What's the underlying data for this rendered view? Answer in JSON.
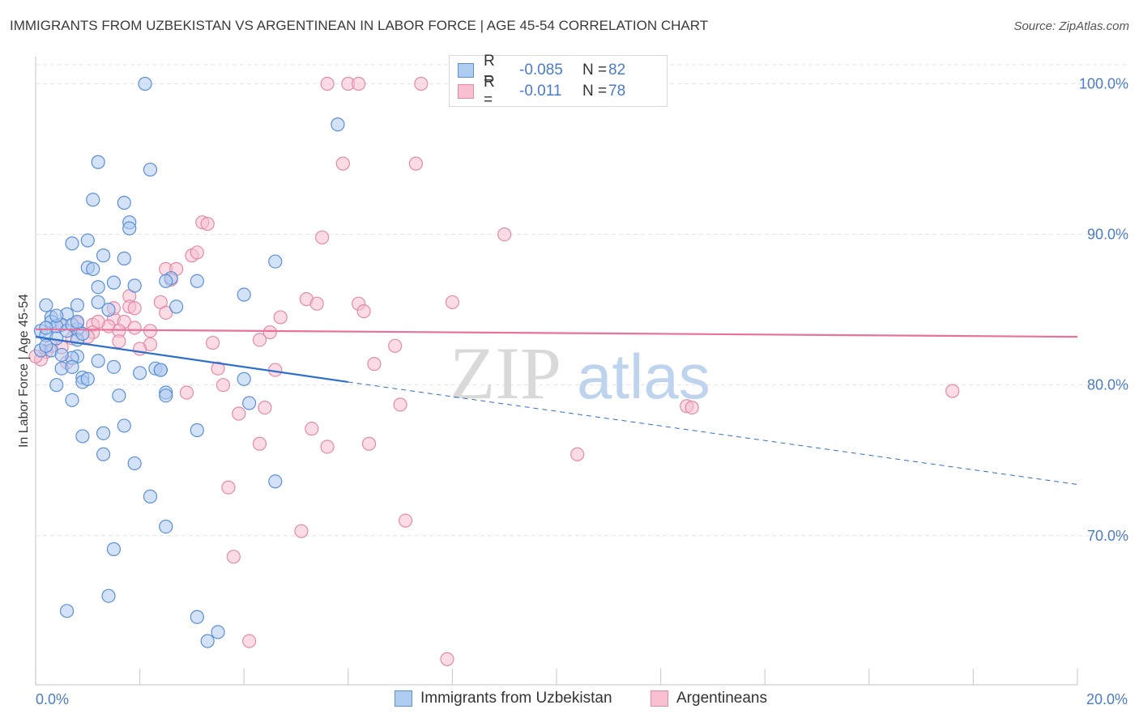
{
  "title": "IMMIGRANTS FROM UZBEKISTAN VS ARGENTINEAN IN LABOR FORCE | AGE 45-54 CORRELATION CHART",
  "source": "Source: ZipAtlas.com",
  "watermark": {
    "zip": "ZIP",
    "atlas": "atlas"
  },
  "colors": {
    "blue_fill": "#aecbf0",
    "blue_stroke": "#5b8fd6",
    "blue_line": "#2f6fcc",
    "pink_fill": "#f7bfd0",
    "pink_stroke": "#e28aa8",
    "pink_line": "#e8729a",
    "tick": "#4a7cc7"
  },
  "legend": {
    "rows": [
      {
        "r_label": "R =",
        "r_value": "-0.085",
        "n_label": "N =",
        "n_value": "82"
      },
      {
        "r_label": "R =",
        "r_value": "-0.011",
        "n_label": "N =",
        "n_value": "78"
      }
    ]
  },
  "bottom_legend": [
    "Immigrants from Uzbekistan",
    "Argentineans"
  ],
  "chart_data": {
    "type": "scatter",
    "title": "IMMIGRANTS FROM UZBEKISTAN VS ARGENTINEAN IN LABOR FORCE | AGE 45-54 CORRELATION CHART",
    "xlabel": "",
    "ylabel": "In Labor Force | Age 45-54",
    "xlim": [
      0,
      20
    ],
    "ylim": [
      60.1,
      101.8
    ],
    "x_tick_labels": [
      "0.0%",
      "20.0%"
    ],
    "y_ticks": [
      70,
      80,
      90,
      100
    ],
    "y_tick_labels": [
      "70.0%",
      "80.0%",
      "90.0%",
      "100.0%"
    ],
    "grid": true,
    "series": [
      {
        "name": "Immigrants from Uzbekistan",
        "color": "#5b8fd6",
        "trend": {
          "x": [
            0,
            6
          ],
          "y": [
            83.2,
            80.2
          ],
          "dashed_to_x": 20,
          "dashed_end_y": 73.4
        },
        "points": [
          [
            2.1,
            100.0
          ],
          [
            5.8,
            97.3
          ],
          [
            1.2,
            94.8
          ],
          [
            2.2,
            94.3
          ],
          [
            1.1,
            92.3
          ],
          [
            1.7,
            92.1
          ],
          [
            1.8,
            90.8
          ],
          [
            1.8,
            90.4
          ],
          [
            0.7,
            89.4
          ],
          [
            1.0,
            89.6
          ],
          [
            1.3,
            88.6
          ],
          [
            1.7,
            88.4
          ],
          [
            4.6,
            88.2
          ],
          [
            1.0,
            87.8
          ],
          [
            1.1,
            87.7
          ],
          [
            2.6,
            87.1
          ],
          [
            2.5,
            86.9
          ],
          [
            1.5,
            86.8
          ],
          [
            1.9,
            86.6
          ],
          [
            1.2,
            86.5
          ],
          [
            3.1,
            86.9
          ],
          [
            4.0,
            86.0
          ],
          [
            1.2,
            85.5
          ],
          [
            0.8,
            85.3
          ],
          [
            2.7,
            85.2
          ],
          [
            1.4,
            85.0
          ],
          [
            0.2,
            85.3
          ],
          [
            0.3,
            84.5
          ],
          [
            0.6,
            84.7
          ],
          [
            0.3,
            84.2
          ],
          [
            0.5,
            84.0
          ],
          [
            0.4,
            83.9
          ],
          [
            0.6,
            83.6
          ],
          [
            0.1,
            83.6
          ],
          [
            0.8,
            83.7
          ],
          [
            0.7,
            84.0
          ],
          [
            0.2,
            83.3
          ],
          [
            0.4,
            83.1
          ],
          [
            0.8,
            83.0
          ],
          [
            0.9,
            83.4
          ],
          [
            0.1,
            82.3
          ],
          [
            0.3,
            82.3
          ],
          [
            0.8,
            81.9
          ],
          [
            0.7,
            81.8
          ],
          [
            1.2,
            81.6
          ],
          [
            2.3,
            81.1
          ],
          [
            0.5,
            81.1
          ],
          [
            0.7,
            81.2
          ],
          [
            1.5,
            81.2
          ],
          [
            2.4,
            81.0
          ],
          [
            2.0,
            80.8
          ],
          [
            0.9,
            80.5
          ],
          [
            0.9,
            80.2
          ],
          [
            4.0,
            80.4
          ],
          [
            0.4,
            80.0
          ],
          [
            1.6,
            79.3
          ],
          [
            2.5,
            79.5
          ],
          [
            2.5,
            79.3
          ],
          [
            0.7,
            79.0
          ],
          [
            4.1,
            78.8
          ],
          [
            1.7,
            77.3
          ],
          [
            3.1,
            77.0
          ],
          [
            1.3,
            76.8
          ],
          [
            0.9,
            76.6
          ],
          [
            1.3,
            75.4
          ],
          [
            1.9,
            74.8
          ],
          [
            4.6,
            73.6
          ],
          [
            2.2,
            72.6
          ],
          [
            2.5,
            70.6
          ],
          [
            1.5,
            69.1
          ],
          [
            1.4,
            66.0
          ],
          [
            0.6,
            65.0
          ],
          [
            3.1,
            64.6
          ],
          [
            3.5,
            63.6
          ],
          [
            3.3,
            63.0
          ],
          [
            0.4,
            84.6
          ],
          [
            0.5,
            82.0
          ],
          [
            2.4,
            81.0
          ],
          [
            1.0,
            80.4
          ],
          [
            0.8,
            84.2
          ],
          [
            0.2,
            83.8
          ],
          [
            0.2,
            82.6
          ]
        ]
      },
      {
        "name": "Argentineans",
        "color": "#e28aa8",
        "trend": {
          "x": [
            0,
            20
          ],
          "y": [
            83.7,
            83.2
          ]
        },
        "points": [
          [
            5.6,
            100.0
          ],
          [
            6.0,
            100.0
          ],
          [
            6.2,
            100.0
          ],
          [
            7.4,
            100.0
          ],
          [
            8.1,
            100.0
          ],
          [
            8.3,
            100.0
          ],
          [
            9.2,
            100.0
          ],
          [
            5.9,
            94.7
          ],
          [
            7.3,
            94.7
          ],
          [
            3.2,
            90.8
          ],
          [
            3.3,
            90.7
          ],
          [
            5.5,
            89.8
          ],
          [
            9.0,
            90.0
          ],
          [
            3.0,
            88.6
          ],
          [
            3.1,
            88.8
          ],
          [
            2.5,
            87.7
          ],
          [
            2.7,
            87.7
          ],
          [
            2.6,
            87.0
          ],
          [
            1.8,
            85.9
          ],
          [
            2.4,
            85.5
          ],
          [
            5.2,
            85.7
          ],
          [
            5.4,
            85.4
          ],
          [
            6.2,
            85.4
          ],
          [
            8.0,
            85.5
          ],
          [
            1.8,
            85.2
          ],
          [
            1.9,
            85.1
          ],
          [
            2.5,
            84.8
          ],
          [
            6.3,
            84.9
          ],
          [
            4.7,
            84.5
          ],
          [
            1.5,
            84.4
          ],
          [
            1.7,
            84.2
          ],
          [
            0.8,
            84.1
          ],
          [
            1.1,
            84.0
          ],
          [
            0.5,
            84.0
          ],
          [
            1.4,
            83.9
          ],
          [
            1.9,
            83.8
          ],
          [
            1.6,
            83.6
          ],
          [
            1.1,
            83.5
          ],
          [
            4.5,
            83.5
          ],
          [
            4.3,
            83.0
          ],
          [
            1.6,
            82.9
          ],
          [
            3.4,
            82.8
          ],
          [
            2.2,
            82.7
          ],
          [
            6.9,
            82.6
          ],
          [
            0.3,
            82.6
          ],
          [
            0.5,
            82.5
          ],
          [
            0.2,
            82.2
          ],
          [
            6.5,
            81.4
          ],
          [
            3.5,
            81.1
          ],
          [
            4.6,
            81.0
          ],
          [
            0.6,
            81.5
          ],
          [
            0.1,
            81.7
          ],
          [
            0.0,
            81.9
          ],
          [
            3.6,
            80.0
          ],
          [
            2.9,
            79.5
          ],
          [
            17.6,
            79.6
          ],
          [
            7.0,
            78.7
          ],
          [
            12.5,
            78.6
          ],
          [
            12.6,
            78.5
          ],
          [
            4.4,
            78.5
          ],
          [
            3.9,
            78.1
          ],
          [
            5.3,
            77.1
          ],
          [
            4.3,
            76.1
          ],
          [
            5.6,
            75.9
          ],
          [
            6.4,
            76.1
          ],
          [
            10.4,
            75.4
          ],
          [
            3.7,
            73.2
          ],
          [
            7.1,
            71.0
          ],
          [
            5.1,
            70.3
          ],
          [
            3.8,
            68.6
          ],
          [
            4.1,
            63.0
          ],
          [
            7.9,
            61.8
          ],
          [
            1.0,
            83.2
          ],
          [
            2.2,
            83.6
          ],
          [
            1.2,
            84.2
          ],
          [
            2.0,
            82.4
          ],
          [
            0.7,
            83.1
          ],
          [
            1.5,
            85.1
          ]
        ]
      }
    ]
  }
}
